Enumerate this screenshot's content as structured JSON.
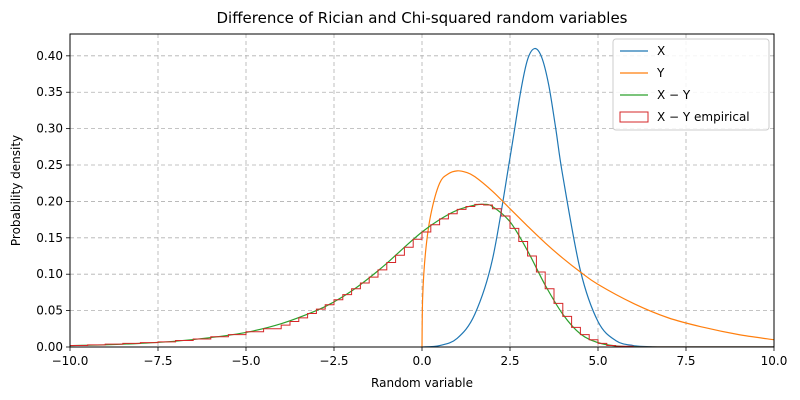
{
  "chart_data": {
    "type": "line",
    "title": "Difference of Rician and Chi-squared random variables",
    "xlabel": "Random variable",
    "ylabel": "Probability density",
    "xlim": [
      -10,
      10
    ],
    "ylim": [
      0,
      0.43
    ],
    "xticks": [
      -10,
      -7.5,
      -5,
      -2.5,
      0,
      2.5,
      5,
      7.5,
      10
    ],
    "xtick_labels": [
      "−10.0",
      "−7.5",
      "−5.0",
      "−2.5",
      "0.0",
      "2.5",
      "5.0",
      "7.5",
      "10.0"
    ],
    "yticks": [
      0,
      0.05,
      0.1,
      0.15,
      0.2,
      0.25,
      0.3,
      0.35,
      0.4
    ],
    "ytick_labels": [
      "0.00",
      "0.05",
      "0.10",
      "0.15",
      "0.20",
      "0.25",
      "0.30",
      "0.35",
      "0.40"
    ],
    "grid": true,
    "legend_position": "top-right",
    "series": [
      {
        "name": "X",
        "kind": "line",
        "color": "#1f77b4",
        "x": [
          0,
          0.5,
          1.0,
          1.5,
          2.0,
          2.5,
          2.8,
          3.0,
          3.2,
          3.4,
          3.6,
          3.8,
          4.0,
          4.5,
          5.0,
          5.5,
          6.0,
          6.5,
          7.0,
          10.0
        ],
        "y": [
          0,
          0.002,
          0.012,
          0.045,
          0.12,
          0.26,
          0.35,
          0.395,
          0.41,
          0.398,
          0.36,
          0.3,
          0.235,
          0.105,
          0.035,
          0.009,
          0.002,
          0.0004,
          0,
          0
        ]
      },
      {
        "name": "Y",
        "kind": "line",
        "color": "#ff7f0e",
        "x": [
          0,
          0.02,
          0.1,
          0.25,
          0.5,
          0.75,
          1.0,
          1.25,
          1.5,
          2.0,
          2.5,
          3.0,
          3.5,
          4.0,
          4.5,
          5.0,
          6.0,
          7.0,
          8.0,
          9.0,
          10.0
        ],
        "y": [
          0,
          0.07,
          0.13,
          0.182,
          0.225,
          0.238,
          0.242,
          0.24,
          0.234,
          0.214,
          0.19,
          0.166,
          0.143,
          0.122,
          0.103,
          0.086,
          0.06,
          0.04,
          0.027,
          0.017,
          0.01
        ]
      },
      {
        "name": "X − Y",
        "kind": "line",
        "color": "#2ca02c",
        "x": [
          -10,
          -9,
          -8,
          -7,
          -6,
          -5,
          -4,
          -3,
          -2.5,
          -2,
          -1.5,
          -1,
          -0.5,
          0,
          0.5,
          1.0,
          1.5,
          1.75,
          2.0,
          2.5,
          3.0,
          3.5,
          4.0,
          4.5,
          5.0,
          5.5,
          6.0,
          7.0,
          10.0
        ],
        "y": [
          0.002,
          0.003,
          0.005,
          0.008,
          0.013,
          0.02,
          0.032,
          0.05,
          0.062,
          0.077,
          0.095,
          0.115,
          0.137,
          0.158,
          0.175,
          0.188,
          0.195,
          0.196,
          0.193,
          0.172,
          0.132,
          0.085,
          0.045,
          0.018,
          0.006,
          0.0015,
          0.0003,
          0,
          0
        ]
      },
      {
        "name": "X − Y empirical",
        "kind": "step-histogram",
        "color": "#d62728",
        "x": [
          -10,
          -9.5,
          -9,
          -8.5,
          -8,
          -7.5,
          -7,
          -6.5,
          -6,
          -5.5,
          -5,
          -4.5,
          -4,
          -3.75,
          -3.5,
          -3.25,
          -3,
          -2.75,
          -2.5,
          -2.25,
          -2,
          -1.75,
          -1.5,
          -1.25,
          -1,
          -0.75,
          -0.5,
          -0.25,
          0,
          0.25,
          0.5,
          0.75,
          1.0,
          1.25,
          1.5,
          1.75,
          2.0,
          2.25,
          2.5,
          2.75,
          3.0,
          3.25,
          3.5,
          3.75,
          4.0,
          4.25,
          4.5,
          4.75,
          5.0,
          5.25,
          5.5,
          6.0,
          10.0
        ],
        "y": [
          0.002,
          0.003,
          0.004,
          0.005,
          0.006,
          0.007,
          0.009,
          0.011,
          0.014,
          0.017,
          0.021,
          0.025,
          0.03,
          0.035,
          0.04,
          0.046,
          0.052,
          0.058,
          0.065,
          0.072,
          0.08,
          0.088,
          0.096,
          0.106,
          0.116,
          0.126,
          0.137,
          0.148,
          0.158,
          0.168,
          0.176,
          0.183,
          0.189,
          0.193,
          0.196,
          0.195,
          0.19,
          0.18,
          0.163,
          0.145,
          0.125,
          0.103,
          0.08,
          0.06,
          0.042,
          0.027,
          0.017,
          0.01,
          0.005,
          0.002,
          0.001,
          0.0002
        ]
      }
    ]
  }
}
